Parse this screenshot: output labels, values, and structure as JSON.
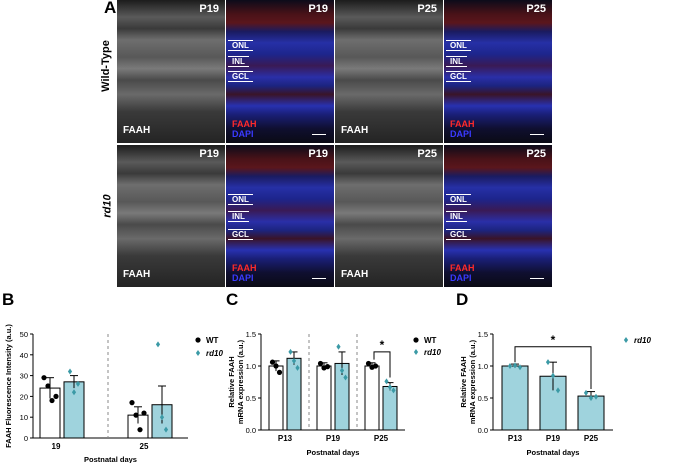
{
  "figure": {
    "panel_a": {
      "letter": "A",
      "rows": [
        {
          "label": "Wild-Type",
          "tiles": [
            {
              "type": "gray",
              "time": "P19",
              "marker": "FAAH"
            },
            {
              "type": "merge",
              "time": "P19",
              "layers": [
                "ONL",
                "INL",
                "GCL"
              ],
              "legend": [
                "FAAH",
                "DAPI"
              ]
            },
            {
              "type": "gray",
              "time": "P25",
              "marker": "FAAH"
            },
            {
              "type": "merge",
              "time": "P25",
              "layers": [
                "ONL",
                "INL",
                "GCL"
              ],
              "legend": [
                "FAAH",
                "DAPI"
              ]
            }
          ]
        },
        {
          "label": "rd10",
          "tiles": [
            {
              "type": "gray",
              "time": "P19",
              "marker": "FAAH"
            },
            {
              "type": "merge",
              "time": "P19",
              "layers": [
                "ONL",
                "INL",
                "GCL"
              ],
              "legend": [
                "FAAH",
                "DAPI"
              ]
            },
            {
              "type": "gray",
              "time": "P25",
              "marker": "FAAH"
            },
            {
              "type": "merge",
              "time": "P25",
              "layers": [
                "ONL",
                "INL",
                "GCL"
              ],
              "legend": [
                "FAAH",
                "DAPI"
              ]
            }
          ]
        }
      ]
    },
    "colors": {
      "wt": "#ffffff",
      "rd10": "#9fd3dd",
      "rd10_marker": "#3b9aa6",
      "faah": "#ff2a2a",
      "dapi": "#3a3aff"
    }
  },
  "chart_data": [
    {
      "panel": "B",
      "type": "bar",
      "ylabel": "FAAH Fluorescence Intensity (a.u.)",
      "xlabel": "Postnatal days",
      "ylim": [
        0,
        50
      ],
      "yticks": [
        0,
        10,
        20,
        30,
        40,
        50
      ],
      "categories": [
        "19",
        "25"
      ],
      "legend": [
        "WT",
        "rd10"
      ],
      "series": [
        {
          "name": "WT",
          "values": [
            24,
            11
          ],
          "errors": [
            5,
            4
          ],
          "points": [
            [
              29,
              25,
              18,
              20
            ],
            [
              17,
              11,
              4,
              12
            ]
          ]
        },
        {
          "name": "rd10",
          "values": [
            27,
            16
          ],
          "errors": [
            3,
            9
          ],
          "points": [
            [
              32,
              22,
              26
            ],
            [
              45,
              10,
              4
            ]
          ]
        }
      ]
    },
    {
      "panel": "C",
      "type": "bar",
      "ylabel": "Relative FAAH mRNA expression (a.u.)",
      "xlabel": "Postnatal days",
      "ylim": [
        0,
        1.5
      ],
      "yticks": [
        0,
        0.5,
        1.0,
        1.5
      ],
      "categories": [
        "P13",
        "P19",
        "P25"
      ],
      "legend": [
        "WT",
        "rd10"
      ],
      "significance": [
        {
          "between": "P25",
          "label": "*"
        }
      ],
      "series": [
        {
          "name": "WT",
          "values": [
            1.0,
            1.0,
            1.0
          ],
          "errors": [
            0.08,
            0.05,
            0.05
          ],
          "points": [
            [
              1.06,
              1.0,
              0.9
            ],
            [
              1.04,
              0.97,
              0.99
            ],
            [
              1.04,
              0.98,
              1.0
            ]
          ]
        },
        {
          "name": "rd10",
          "values": [
            1.12,
            1.04,
            0.68
          ],
          "errors": [
            0.1,
            0.18,
            0.06
          ],
          "points": [
            [
              1.22,
              1.08,
              0.97
            ],
            [
              1.3,
              0.93,
              0.82
            ],
            [
              0.76,
              0.67,
              0.62
            ]
          ]
        }
      ]
    },
    {
      "panel": "D",
      "type": "bar",
      "ylabel": "Relative FAAH mRNA expression (a.u.)",
      "xlabel": "Postnatal days",
      "ylim": [
        0,
        1.5
      ],
      "yticks": [
        0,
        0.5,
        1.0,
        1.5
      ],
      "categories": [
        "P13",
        "P19",
        "P25"
      ],
      "legend": [
        "rd10"
      ],
      "significance": [
        {
          "between": "P13-P25",
          "label": "*"
        }
      ],
      "series": [
        {
          "name": "rd10",
          "values": [
            1.0,
            0.84,
            0.53
          ],
          "errors": [
            0.03,
            0.22,
            0.07
          ],
          "points": [
            [
              1.0,
              1.01,
              0.98
            ],
            [
              1.06,
              0.85,
              0.62
            ],
            [
              0.58,
              0.5,
              0.52
            ]
          ]
        }
      ]
    }
  ]
}
